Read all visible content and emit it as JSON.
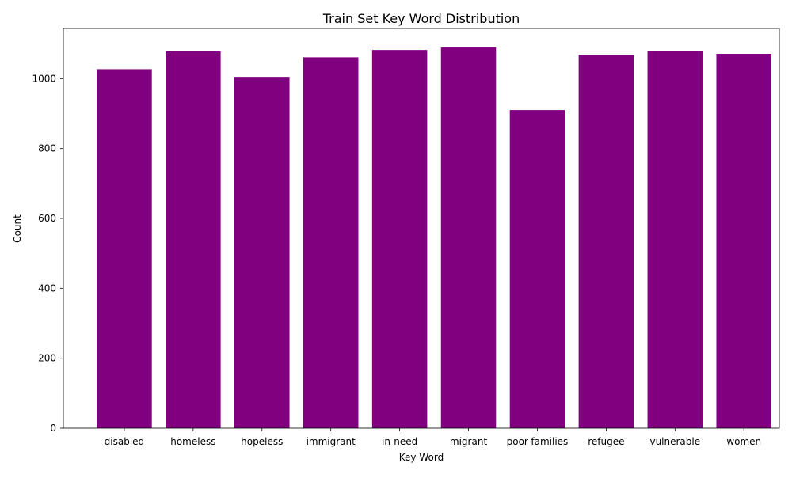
{
  "chart_data": {
    "type": "bar",
    "title": "Train Set Key Word Distribution",
    "xlabel": "Key Word",
    "ylabel": "Count",
    "categories": [
      "disabled",
      "homeless",
      "hopeless",
      "immigrant",
      "in-need",
      "migrant",
      "poor-families",
      "refugee",
      "vulnerable",
      "women"
    ],
    "values": [
      1027,
      1078,
      1005,
      1061,
      1082,
      1089,
      910,
      1068,
      1080,
      1071
    ],
    "ylim": [
      0,
      1143.45
    ],
    "yticks": [
      0,
      200,
      400,
      600,
      800,
      1000
    ],
    "bar_color": "#800080",
    "grid": false,
    "legend": "none"
  }
}
